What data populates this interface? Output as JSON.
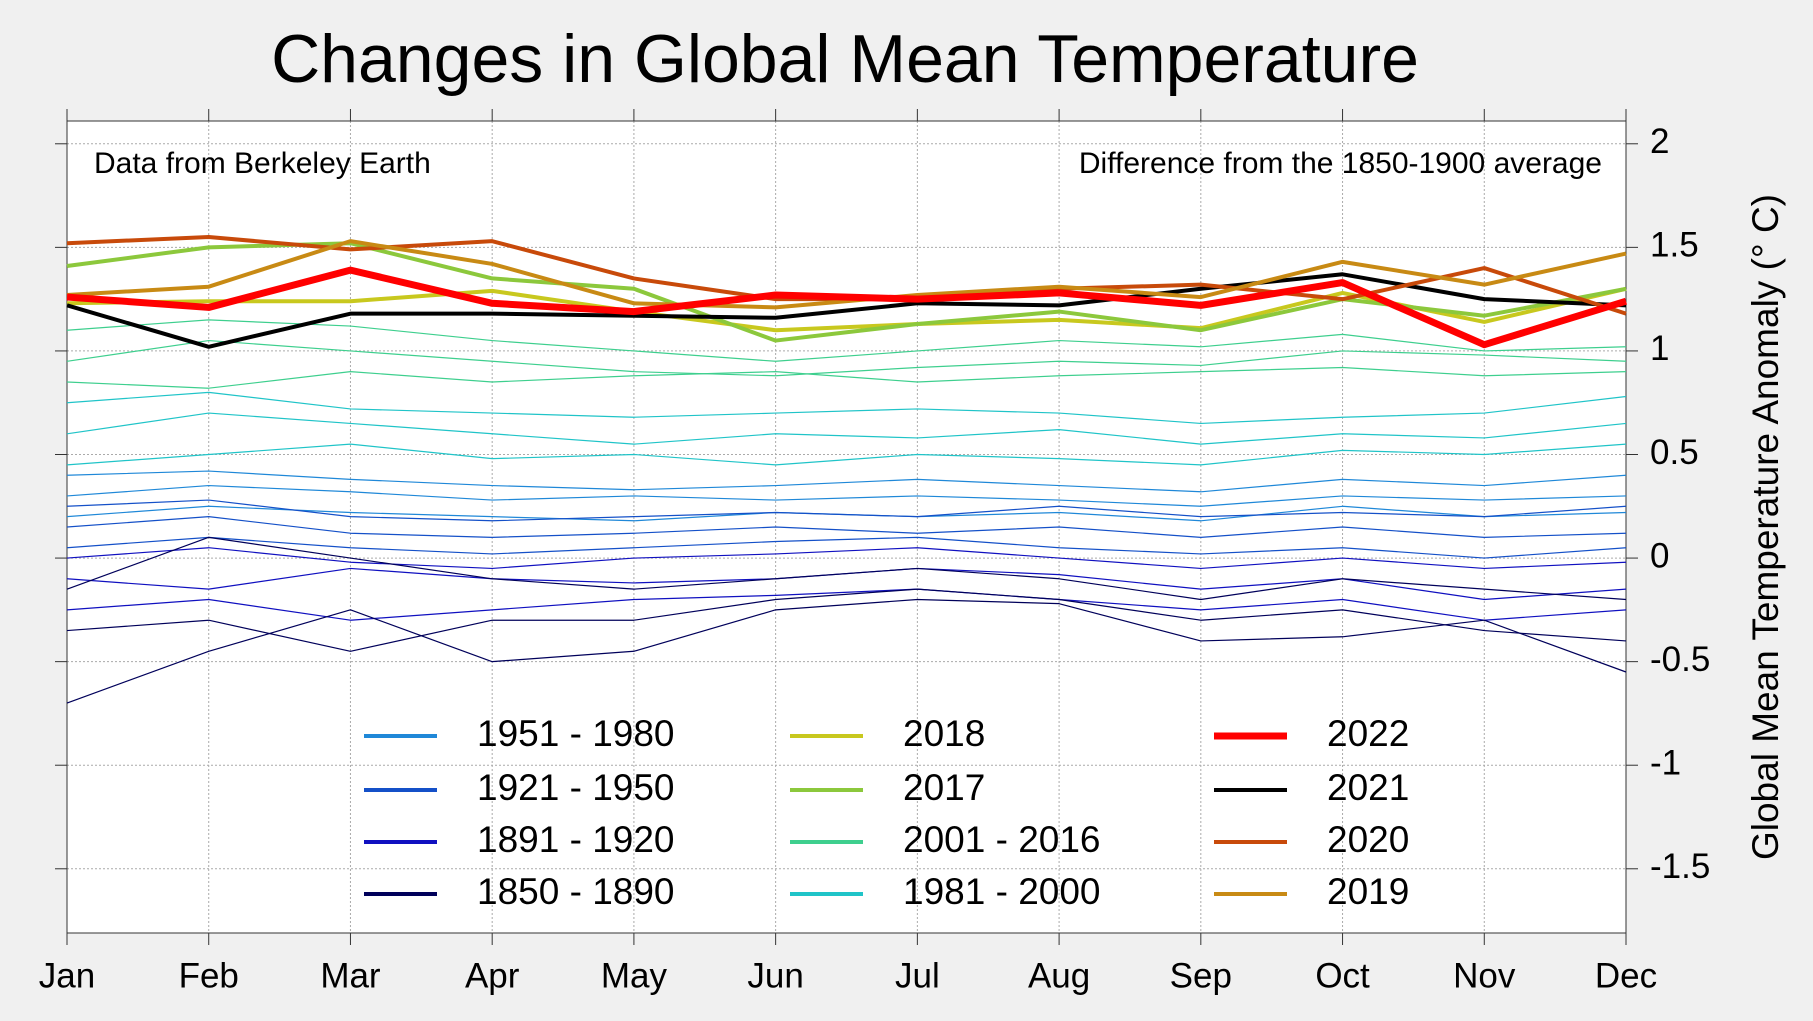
{
  "chart_data": {
    "type": "line",
    "title": "Changes in Global Mean Temperature",
    "annotations": [
      "Data from Berkeley Earth",
      "Difference from the 1850-1900 average"
    ],
    "y_label": "Global Mean Temperature Anomaly (° C)",
    "categories": [
      "Jan",
      "Feb",
      "Mar",
      "Apr",
      "May",
      "Jun",
      "Jul",
      "Aug",
      "Sep",
      "Oct",
      "Nov",
      "Dec"
    ],
    "ylim": [
      -1.81,
      2.11
    ],
    "yticks": [
      -1.5,
      -1,
      -0.5,
      0,
      0.5,
      1,
      1.5,
      2
    ],
    "grid": true,
    "series": [
      {
        "name": "1951 - 1980",
        "color": "#1f88d8",
        "width": 1.2,
        "values": [
          [
            0.3,
            0.35,
            0.32,
            0.28,
            0.3,
            0.28,
            0.3,
            0.28,
            0.25,
            0.3,
            0.28,
            0.3
          ],
          [
            0.2,
            0.25,
            0.22,
            0.2,
            0.18,
            0.22,
            0.2,
            0.22,
            0.18,
            0.25,
            0.2,
            0.22
          ],
          [
            0.4,
            0.42,
            0.38,
            0.35,
            0.33,
            0.35,
            0.38,
            0.35,
            0.32,
            0.38,
            0.35,
            0.4
          ]
        ]
      },
      {
        "name": "1921 - 1950",
        "color": "#1450c8",
        "width": 1.2,
        "values": [
          [
            0.15,
            0.2,
            0.12,
            0.1,
            0.12,
            0.15,
            0.12,
            0.15,
            0.1,
            0.15,
            0.1,
            0.12
          ],
          [
            0.05,
            0.1,
            0.05,
            0.02,
            0.05,
            0.08,
            0.1,
            0.05,
            0.02,
            0.05,
            0.0,
            0.05
          ],
          [
            0.25,
            0.28,
            0.2,
            0.18,
            0.2,
            0.22,
            0.2,
            0.25,
            0.2,
            0.22,
            0.2,
            0.25
          ]
        ]
      },
      {
        "name": "1891 - 1920",
        "color": "#1010c0",
        "width": 1.2,
        "values": [
          [
            -0.1,
            -0.15,
            -0.05,
            -0.1,
            -0.12,
            -0.1,
            -0.05,
            -0.08,
            -0.15,
            -0.1,
            -0.2,
            -0.15
          ],
          [
            -0.25,
            -0.2,
            -0.3,
            -0.25,
            -0.2,
            -0.18,
            -0.15,
            -0.2,
            -0.25,
            -0.2,
            -0.3,
            -0.25
          ],
          [
            0.0,
            0.05,
            -0.02,
            -0.05,
            0.0,
            0.02,
            0.05,
            0.0,
            -0.05,
            0.0,
            -0.05,
            -0.02
          ]
        ]
      },
      {
        "name": "1850 - 1890",
        "color": "#00005a",
        "width": 1.2,
        "values": [
          [
            -0.35,
            -0.3,
            -0.45,
            -0.3,
            -0.3,
            -0.2,
            -0.15,
            -0.2,
            -0.3,
            -0.25,
            -0.35,
            -0.4
          ],
          [
            -0.7,
            -0.45,
            -0.25,
            -0.5,
            -0.45,
            -0.25,
            -0.2,
            -0.22,
            -0.4,
            -0.38,
            -0.3,
            -0.55
          ],
          [
            -0.15,
            0.1,
            0.0,
            -0.1,
            -0.15,
            -0.1,
            -0.05,
            -0.1,
            -0.2,
            -0.1,
            -0.15,
            -0.2
          ]
        ]
      },
      {
        "name": "2018",
        "color": "#c8c81e",
        "width": 4,
        "values": [
          1.23,
          1.24,
          1.24,
          1.29,
          1.19,
          1.1,
          1.13,
          1.15,
          1.11,
          1.28,
          1.14,
          1.3
        ]
      },
      {
        "name": "2017",
        "color": "#8cc83c",
        "width": 4,
        "values": [
          1.41,
          1.5,
          1.52,
          1.35,
          1.3,
          1.05,
          1.13,
          1.19,
          1.1,
          1.25,
          1.17,
          1.3
        ]
      },
      {
        "name": "2001 - 2016",
        "color": "#3ecf8e",
        "width": 1.2,
        "values": [
          [
            0.95,
            1.05,
            1.0,
            0.95,
            0.9,
            0.88,
            0.92,
            0.95,
            0.93,
            1.0,
            0.98,
            0.95
          ],
          [
            0.85,
            0.82,
            0.9,
            0.85,
            0.88,
            0.9,
            0.85,
            0.88,
            0.9,
            0.92,
            0.88,
            0.9
          ],
          [
            1.1,
            1.15,
            1.12,
            1.05,
            1.0,
            0.95,
            1.0,
            1.05,
            1.02,
            1.08,
            1.0,
            1.02
          ]
        ]
      },
      {
        "name": "1981 - 2000",
        "color": "#20c4c8",
        "width": 1.2,
        "values": [
          [
            0.6,
            0.7,
            0.65,
            0.6,
            0.55,
            0.6,
            0.58,
            0.62,
            0.55,
            0.6,
            0.58,
            0.65
          ],
          [
            0.45,
            0.5,
            0.55,
            0.48,
            0.5,
            0.45,
            0.5,
            0.48,
            0.45,
            0.52,
            0.5,
            0.55
          ],
          [
            0.75,
            0.8,
            0.72,
            0.7,
            0.68,
            0.7,
            0.72,
            0.7,
            0.65,
            0.68,
            0.7,
            0.78
          ]
        ]
      },
      {
        "name": "2022",
        "color": "#ff0000",
        "width": 7,
        "values": [
          1.26,
          1.21,
          1.39,
          1.23,
          1.19,
          1.27,
          1.25,
          1.28,
          1.22,
          1.33,
          1.03,
          1.24
        ]
      },
      {
        "name": "2021",
        "color": "#000000",
        "width": 4,
        "values": [
          1.22,
          1.02,
          1.18,
          1.18,
          1.17,
          1.16,
          1.23,
          1.22,
          1.3,
          1.37,
          1.25,
          1.22
        ]
      },
      {
        "name": "2020",
        "color": "#c84a0a",
        "width": 4,
        "values": [
          1.52,
          1.55,
          1.49,
          1.53,
          1.35,
          1.25,
          1.25,
          1.3,
          1.32,
          1.25,
          1.4,
          1.18
        ]
      },
      {
        "name": "2019",
        "color": "#c88a14",
        "width": 4,
        "values": [
          1.27,
          1.31,
          1.53,
          1.42,
          1.23,
          1.21,
          1.27,
          1.31,
          1.26,
          1.43,
          1.32,
          1.47
        ]
      }
    ]
  }
}
